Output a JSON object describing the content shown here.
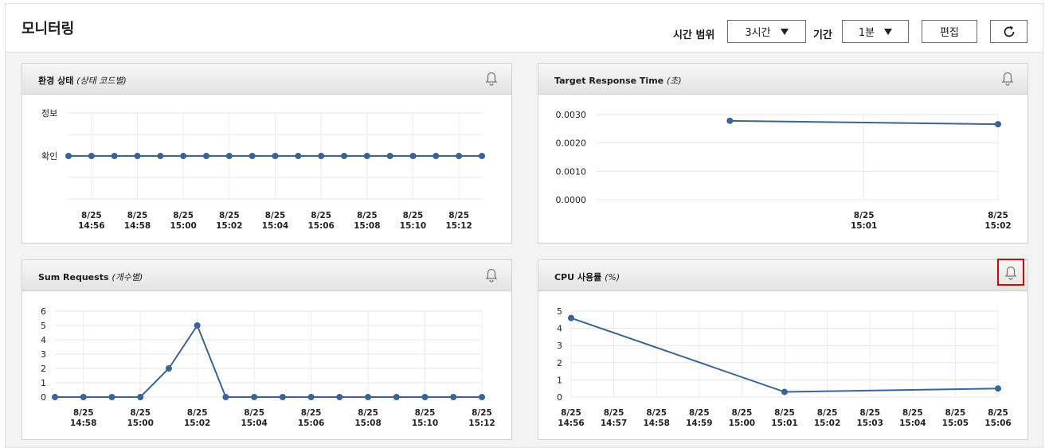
{
  "header": {
    "title": "모니터링",
    "time_range_label": "시간 범위",
    "time_range_value": "3시간",
    "period_label": "기간",
    "period_value": "1분",
    "edit_label": "편집",
    "refresh_icon": "refresh-icon"
  },
  "panels": [
    {
      "title": "환경 상태",
      "unit": "(상태 코드별)",
      "bell_icon": "bell-icon"
    },
    {
      "title": "Target Response Time",
      "unit": "(초)",
      "bell_icon": "bell-icon"
    },
    {
      "title": "Sum Requests",
      "unit": "(개수별)",
      "bell_icon": "bell-icon"
    },
    {
      "title": "CPU 사용률",
      "unit": "(%)",
      "bell_icon": "bell-icon"
    }
  ],
  "line_color": "#3a6496",
  "highlight_color": "#e00000",
  "chart_data": [
    {
      "type": "line",
      "title": "환경 상태 (상태 코드별)",
      "y_categories": [
        "정보",
        "확인"
      ],
      "x_ticks": [
        "8/25 14:56",
        "8/25 14:58",
        "8/25 15:00",
        "8/25 15:02",
        "8/25 15:04",
        "8/25 15:06",
        "8/25 15:08",
        "8/25 15:10",
        "8/25 15:12"
      ],
      "x": [
        0,
        1,
        2,
        3,
        4,
        5,
        6,
        7,
        8,
        9,
        10,
        11,
        12,
        13,
        14,
        15,
        16,
        17,
        18
      ],
      "values": [
        "확인",
        "확인",
        "확인",
        "확인",
        "확인",
        "확인",
        "확인",
        "확인",
        "확인",
        "확인",
        "확인",
        "확인",
        "확인",
        "확인",
        "확인",
        "확인",
        "확인",
        "확인",
        "확인"
      ]
    },
    {
      "type": "line",
      "title": "Target Response Time (초)",
      "y_ticks": [
        "0.0030",
        "0.0020",
        "0.0010",
        "0.0000"
      ],
      "ylim": [
        0,
        0.003
      ],
      "x_ticks": [
        "8/25 15:01",
        "8/25 15:02"
      ],
      "x": [
        "15:00",
        "15:02"
      ],
      "values": [
        0.00278,
        0.00266
      ]
    },
    {
      "type": "line",
      "title": "Sum Requests (개수별)",
      "y_ticks": [
        "6",
        "5",
        "4",
        "3",
        "2",
        "1",
        "0"
      ],
      "ylim": [
        0,
        6
      ],
      "x_ticks": [
        "8/25 14:58",
        "8/25 15:00",
        "8/25 15:02",
        "8/25 15:04",
        "8/25 15:06",
        "8/25 15:08",
        "8/25 15:10",
        "8/25 15:12"
      ],
      "x": [
        "14:57",
        "14:58",
        "14:59",
        "15:00",
        "15:01",
        "15:02",
        "15:03",
        "15:04",
        "15:05",
        "15:06",
        "15:07",
        "15:08",
        "15:09",
        "15:10",
        "15:11",
        "15:12"
      ],
      "values": [
        0,
        0,
        0,
        0,
        2,
        5,
        0,
        0,
        0,
        0,
        0,
        0,
        0,
        0,
        0,
        0
      ]
    },
    {
      "type": "line",
      "title": "CPU 사용률 (%)",
      "y_ticks": [
        "5",
        "4",
        "3",
        "2",
        "1",
        "0"
      ],
      "ylim": [
        0,
        5
      ],
      "x_ticks": [
        "8/25 14:56",
        "8/25 14:57",
        "8/25 14:58",
        "8/25 14:59",
        "8/25 15:00",
        "8/25 15:01",
        "8/25 15:02",
        "8/25 15:03",
        "8/25 15:04",
        "8/25 15:05",
        "8/25 15:06"
      ],
      "x": [
        "14:56",
        "15:01",
        "15:06"
      ],
      "values": [
        4.6,
        0.3,
        0.5
      ]
    }
  ]
}
